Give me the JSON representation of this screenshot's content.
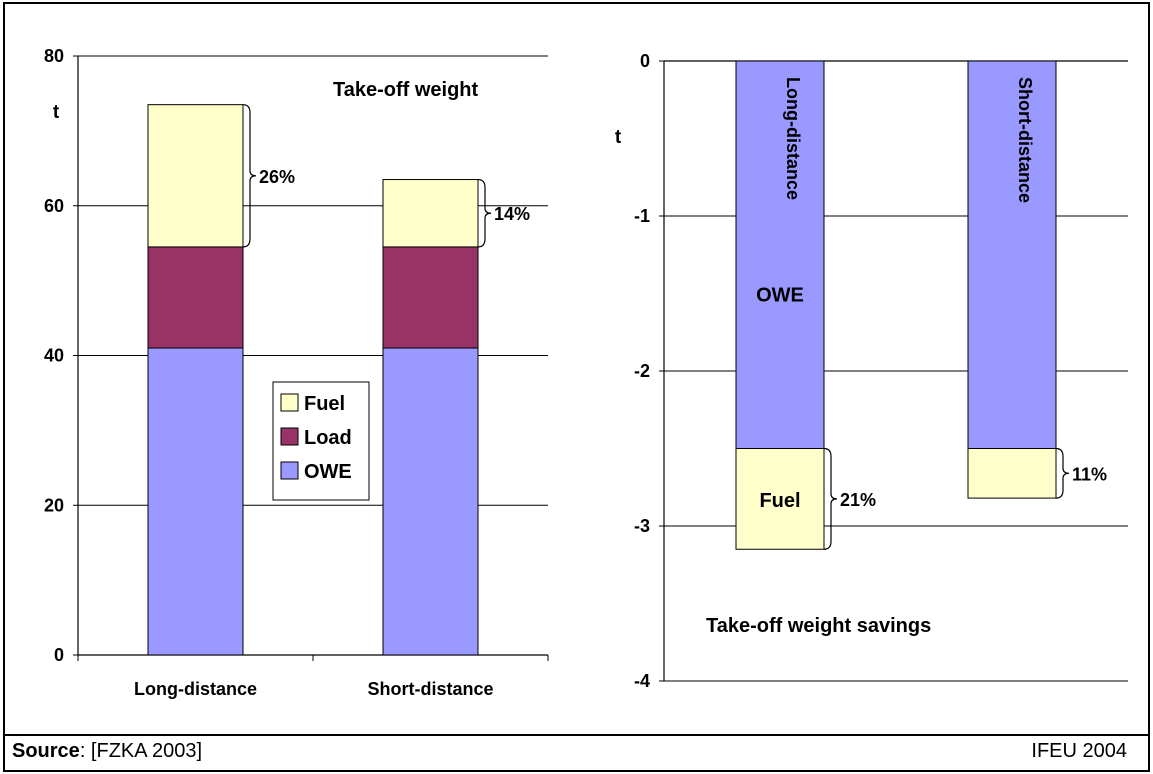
{
  "footer": {
    "source_label": "Source",
    "source_text": ": [FZKA 2003]",
    "credit": "IFEU 2004"
  },
  "chart_data": [
    {
      "type": "bar",
      "stacked": true,
      "title": "Take-off weight",
      "ylabel": "t",
      "xlabel": "",
      "ylim": [
        0,
        80
      ],
      "yticks": [
        0,
        20,
        40,
        60,
        80
      ],
      "grid": true,
      "categories": [
        "Long-distance",
        "Short-distance"
      ],
      "series": [
        {
          "name": "OWE",
          "values": [
            41,
            41
          ],
          "color": "#9999ff"
        },
        {
          "name": "Load",
          "values": [
            13.5,
            13.5
          ],
          "color": "#993366"
        },
        {
          "name": "Fuel",
          "values": [
            19,
            9
          ],
          "color": "#ffffcc"
        }
      ],
      "legend": {
        "position": "center",
        "entries": [
          "Fuel",
          "Load",
          "OWE"
        ]
      },
      "annotations": [
        {
          "category": "Long-distance",
          "text": "26%"
        },
        {
          "category": "Short-distance",
          "text": "14%"
        }
      ]
    },
    {
      "type": "bar",
      "stacked": true,
      "title": "Take-off weight savings",
      "ylabel": "t",
      "xlabel": "",
      "ylim": [
        -4,
        0
      ],
      "yticks": [
        0,
        -1,
        -2,
        -3,
        -4
      ],
      "grid": true,
      "categories": [
        "Long-distance",
        "Short-distance"
      ],
      "series": [
        {
          "name": "OWE",
          "values": [
            -2.5,
            -2.5
          ],
          "color": "#9999ff"
        },
        {
          "name": "Fuel",
          "values": [
            -0.65,
            -0.32
          ],
          "color": "#ffffcc"
        }
      ],
      "segment_labels": {
        "OWE": "OWE",
        "Fuel": "Fuel"
      },
      "annotations": [
        {
          "category": "Long-distance",
          "text": "21%"
        },
        {
          "category": "Short-distance",
          "text": "11%"
        }
      ]
    }
  ]
}
